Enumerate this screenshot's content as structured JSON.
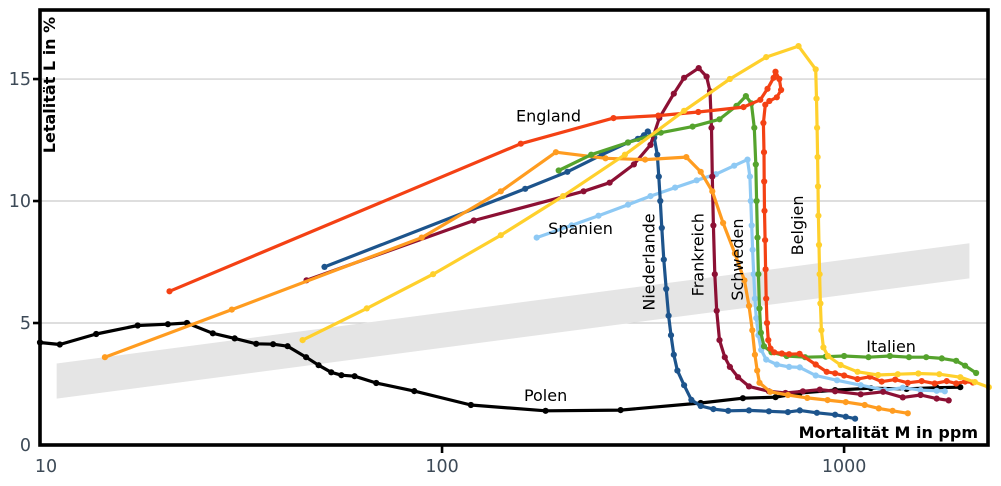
{
  "figure": {
    "background": "#ffffff",
    "border_color": "#000000",
    "grid_color": "#c9c9c9",
    "tick_label_color": "#3d4a57",
    "label_color": "#000000"
  },
  "chart_data": {
    "type": "line",
    "title": "",
    "xlabel": "Mortalität M in ppm",
    "ylabel": "Letalität L in %",
    "x_scale": "log",
    "xlim": [
      10,
      2280
    ],
    "ylim": [
      0,
      17.83
    ],
    "grid": "horizontal",
    "x_ticks": [
      {
        "value": 10,
        "label": "10"
      },
      {
        "value": 100,
        "label": "100"
      },
      {
        "value": 1000,
        "label": "1000"
      }
    ],
    "y_ticks": [
      {
        "value": 0,
        "label": "0"
      },
      {
        "value": 5,
        "label": "5"
      },
      {
        "value": 10,
        "label": "10"
      },
      {
        "value": 15,
        "label": "15"
      }
    ],
    "reference_band": {
      "from": {
        "m": 11,
        "l": 2.62
      },
      "to": {
        "m": 2050,
        "l": 7.55
      },
      "half_width_l": 0.72,
      "color": "#e5e5e5"
    },
    "series": [
      {
        "name": "Polen",
        "color": "#000000",
        "label": {
          "text": "Polen",
          "m": 181,
          "l": 2.05,
          "rotation": 0
        },
        "points": [
          [
            10,
            4.2
          ],
          [
            11.2,
            4.12
          ],
          [
            13.8,
            4.55
          ],
          [
            17.5,
            4.9
          ],
          [
            20.8,
            4.95
          ],
          [
            23.2,
            5.0
          ],
          [
            26.9,
            4.58
          ],
          [
            30.5,
            4.37
          ],
          [
            34.5,
            4.15
          ],
          [
            38,
            4.13
          ],
          [
            41.3,
            4.05
          ],
          [
            45.9,
            3.6
          ],
          [
            49.3,
            3.27
          ],
          [
            53,
            2.98
          ],
          [
            56.2,
            2.86
          ],
          [
            60.6,
            2.82
          ],
          [
            68.6,
            2.54
          ],
          [
            85.3,
            2.21
          ],
          [
            118,
            1.64
          ],
          [
            181,
            1.4
          ],
          [
            278,
            1.43
          ],
          [
            440,
            1.72
          ],
          [
            560,
            1.92
          ],
          [
            675,
            1.96
          ],
          [
            776,
            2.13
          ],
          [
            950,
            2.25
          ],
          [
            1165,
            2.33
          ],
          [
            1430,
            2.3
          ],
          [
            1700,
            2.35
          ],
          [
            1945,
            2.37
          ]
        ]
      },
      {
        "name": "Spanien",
        "color": "#8ec9f4",
        "label": {
          "text": "Spanien",
          "m": 221,
          "l": 8.9,
          "rotation": 0
        },
        "points": [
          [
            172,
            8.5
          ],
          [
            210,
            9.0
          ],
          [
            245,
            9.4
          ],
          [
            290,
            9.85
          ],
          [
            330,
            10.2
          ],
          [
            380,
            10.55
          ],
          [
            430,
            10.85
          ],
          [
            480,
            11.1
          ],
          [
            533,
            11.45
          ],
          [
            575,
            11.7
          ],
          [
            583,
            11.0
          ],
          [
            586,
            10.0
          ],
          [
            589,
            9.0
          ],
          [
            592,
            8.0
          ],
          [
            596,
            7.0
          ],
          [
            600,
            6.0
          ],
          [
            605,
            5.2
          ],
          [
            612,
            4.5
          ],
          [
            622,
            3.9
          ],
          [
            640,
            3.5
          ],
          [
            680,
            3.3
          ],
          [
            730,
            3.2
          ],
          [
            776,
            3.18
          ],
          [
            850,
            2.85
          ],
          [
            960,
            2.65
          ],
          [
            1100,
            2.45
          ],
          [
            1265,
            2.25
          ],
          [
            1400,
            2.35
          ],
          [
            1550,
            2.25
          ],
          [
            1700,
            2.22
          ],
          [
            1780,
            2.2
          ]
        ]
      },
      {
        "name": "Niederlande",
        "color": "#1d548c",
        "label": {
          "text": "Niederlande",
          "m": 338,
          "l": 7.5,
          "rotation": -90
        },
        "points": [
          [
            51,
            7.3
          ],
          [
            161,
            10.5
          ],
          [
            205,
            11.2
          ],
          [
            250,
            11.9
          ],
          [
            290,
            12.4
          ],
          [
            307,
            12.55
          ],
          [
            318,
            12.7
          ],
          [
            325,
            12.85
          ],
          [
            337,
            12.6
          ],
          [
            343,
            11.9
          ],
          [
            346,
            11.0
          ],
          [
            349,
            10.0
          ],
          [
            352,
            8.9
          ],
          [
            356,
            7.6
          ],
          [
            361,
            6.4
          ],
          [
            366,
            5.3
          ],
          [
            371,
            4.5
          ],
          [
            377,
            3.7
          ],
          [
            385,
            3.05
          ],
          [
            400,
            2.45
          ],
          [
            417,
            1.85
          ],
          [
            440,
            1.6
          ],
          [
            473,
            1.47
          ],
          [
            515,
            1.4
          ],
          [
            580,
            1.42
          ],
          [
            650,
            1.38
          ],
          [
            725,
            1.35
          ],
          [
            776,
            1.42
          ],
          [
            856,
            1.32
          ],
          [
            950,
            1.24
          ],
          [
            1010,
            1.16
          ],
          [
            1065,
            1.08
          ]
        ]
      },
      {
        "name": "Frankreich",
        "color": "#8c1034",
        "label": {
          "text": "Frankreich",
          "m": 447,
          "l": 7.8,
          "rotation": -90
        },
        "points": [
          [
            46,
            6.75
          ],
          [
            120,
            9.2
          ],
          [
            225,
            10.4
          ],
          [
            261,
            10.75
          ],
          [
            300,
            11.5
          ],
          [
            330,
            12.3
          ],
          [
            347,
            13.4
          ],
          [
            377,
            14.4
          ],
          [
            400,
            15.05
          ],
          [
            435,
            15.45
          ],
          [
            455,
            15.1
          ],
          [
            464,
            14.5
          ],
          [
            468,
            13.0
          ],
          [
            470,
            11.0
          ],
          [
            473,
            9.0
          ],
          [
            477,
            7.0
          ],
          [
            482,
            5.5
          ],
          [
            490,
            4.3
          ],
          [
            505,
            3.6
          ],
          [
            520,
            3.2
          ],
          [
            545,
            2.78
          ],
          [
            580,
            2.4
          ],
          [
            650,
            2.2
          ],
          [
            715,
            2.13
          ],
          [
            790,
            2.2
          ],
          [
            870,
            2.27
          ],
          [
            950,
            2.2
          ],
          [
            1100,
            2.08
          ],
          [
            1250,
            2.18
          ],
          [
            1400,
            1.95
          ],
          [
            1550,
            2.05
          ],
          [
            1700,
            1.9
          ],
          [
            1820,
            1.83
          ]
        ]
      },
      {
        "name": "Schweden",
        "color": "#ff9c20",
        "label": {
          "text": "Schweden",
          "m": 561,
          "l": 7.6,
          "rotation": -90
        },
        "points": [
          [
            14.5,
            3.6
          ],
          [
            30,
            5.55
          ],
          [
            89,
            8.5
          ],
          [
            140,
            10.4
          ],
          [
            192,
            12.0
          ],
          [
            255,
            11.75
          ],
          [
            320,
            11.7
          ],
          [
            405,
            11.8
          ],
          [
            440,
            11.2
          ],
          [
            470,
            10.4
          ],
          [
            500,
            9.1
          ],
          [
            535,
            7.85
          ],
          [
            565,
            6.75
          ],
          [
            580,
            5.7
          ],
          [
            591,
            4.7
          ],
          [
            600,
            3.7
          ],
          [
            608,
            3.05
          ],
          [
            616,
            2.55
          ],
          [
            655,
            2.18
          ],
          [
            725,
            2.05
          ],
          [
            810,
            1.93
          ],
          [
            910,
            1.84
          ],
          [
            1010,
            1.76
          ],
          [
            1125,
            1.64
          ],
          [
            1220,
            1.5
          ],
          [
            1320,
            1.4
          ],
          [
            1440,
            1.3
          ]
        ]
      },
      {
        "name": "Italien",
        "color": "#55a32d",
        "label": {
          "text": "Italien",
          "m": 1309,
          "l": 4.05,
          "rotation": 0
        },
        "points": [
          [
            195,
            11.25
          ],
          [
            235,
            11.9
          ],
          [
            290,
            12.4
          ],
          [
            350,
            12.8
          ],
          [
            420,
            13.05
          ],
          [
            490,
            13.35
          ],
          [
            540,
            13.9
          ],
          [
            570,
            14.3
          ],
          [
            588,
            14.0
          ],
          [
            598,
            13.0
          ],
          [
            603,
            11.5
          ],
          [
            606,
            10.0
          ],
          [
            609,
            8.5
          ],
          [
            612,
            7.0
          ],
          [
            616,
            5.6
          ],
          [
            621,
            4.6
          ],
          [
            632,
            4.05
          ],
          [
            660,
            3.8
          ],
          [
            720,
            3.65
          ],
          [
            800,
            3.6
          ],
          [
            900,
            3.62
          ],
          [
            1000,
            3.65
          ],
          [
            1150,
            3.6
          ],
          [
            1300,
            3.65
          ],
          [
            1450,
            3.6
          ],
          [
            1600,
            3.6
          ],
          [
            1750,
            3.55
          ],
          [
            1900,
            3.45
          ],
          [
            2000,
            3.25
          ],
          [
            2130,
            2.95
          ]
        ]
      },
      {
        "name": "England",
        "color": "#f44114",
        "label": {
          "text": "England",
          "m": 184,
          "l": 13.5,
          "rotation": 0
        },
        "points": [
          [
            21,
            6.3
          ],
          [
            157,
            12.35
          ],
          [
            267,
            13.4
          ],
          [
            345,
            13.5
          ],
          [
            434,
            13.65
          ],
          [
            562,
            13.85
          ],
          [
            619,
            14.15
          ],
          [
            645,
            14.6
          ],
          [
            668,
            15.05
          ],
          [
            675,
            15.3
          ],
          [
            690,
            15.0
          ],
          [
            697,
            14.55
          ],
          [
            680,
            14.25
          ],
          [
            652,
            14.1
          ],
          [
            637,
            13.95
          ],
          [
            630,
            13.2
          ],
          [
            632,
            12.0
          ],
          [
            633,
            10.8
          ],
          [
            634,
            9.6
          ],
          [
            636,
            8.4
          ],
          [
            638,
            7.2
          ],
          [
            640,
            6.0
          ],
          [
            643,
            5.0
          ],
          [
            648,
            4.3
          ],
          [
            656,
            3.95
          ],
          [
            670,
            3.8
          ],
          [
            700,
            3.75
          ],
          [
            730,
            3.72
          ],
          [
            775,
            3.74
          ],
          [
            850,
            3.3
          ],
          [
            905,
            3.0
          ],
          [
            950,
            2.94
          ],
          [
            1000,
            2.85
          ],
          [
            1080,
            2.7
          ],
          [
            1160,
            2.8
          ],
          [
            1240,
            2.6
          ],
          [
            1340,
            2.68
          ],
          [
            1440,
            2.55
          ],
          [
            1560,
            2.62
          ],
          [
            1680,
            2.52
          ],
          [
            1800,
            2.62
          ],
          [
            1900,
            2.52
          ],
          [
            2000,
            2.6
          ],
          [
            2090,
            2.56
          ]
        ]
      },
      {
        "name": "Belgien",
        "color": "#ffd02c",
        "label": {
          "text": "Belgien",
          "m": 791,
          "l": 9.0,
          "rotation": -90
        },
        "points": [
          [
            45,
            4.3
          ],
          [
            65,
            5.6
          ],
          [
            95,
            7.0
          ],
          [
            140,
            8.6
          ],
          [
            200,
            10.2
          ],
          [
            285,
            11.9
          ],
          [
            400,
            13.7
          ],
          [
            520,
            15.0
          ],
          [
            640,
            15.9
          ],
          [
            770,
            16.35
          ],
          [
            850,
            15.4
          ],
          [
            854,
            14.2
          ],
          [
            857,
            13.0
          ],
          [
            859,
            11.8
          ],
          [
            861,
            10.6
          ],
          [
            863,
            9.4
          ],
          [
            866,
            8.2
          ],
          [
            869,
            7.0
          ],
          [
            873,
            5.8
          ],
          [
            878,
            4.7
          ],
          [
            888,
            4.0
          ],
          [
            912,
            3.65
          ],
          [
            980,
            3.28
          ],
          [
            1080,
            3.0
          ],
          [
            1215,
            2.87
          ],
          [
            1360,
            2.9
          ],
          [
            1530,
            2.93
          ],
          [
            1725,
            2.9
          ],
          [
            1945,
            2.78
          ],
          [
            2115,
            2.58
          ],
          [
            2290,
            2.37
          ]
        ]
      }
    ]
  }
}
